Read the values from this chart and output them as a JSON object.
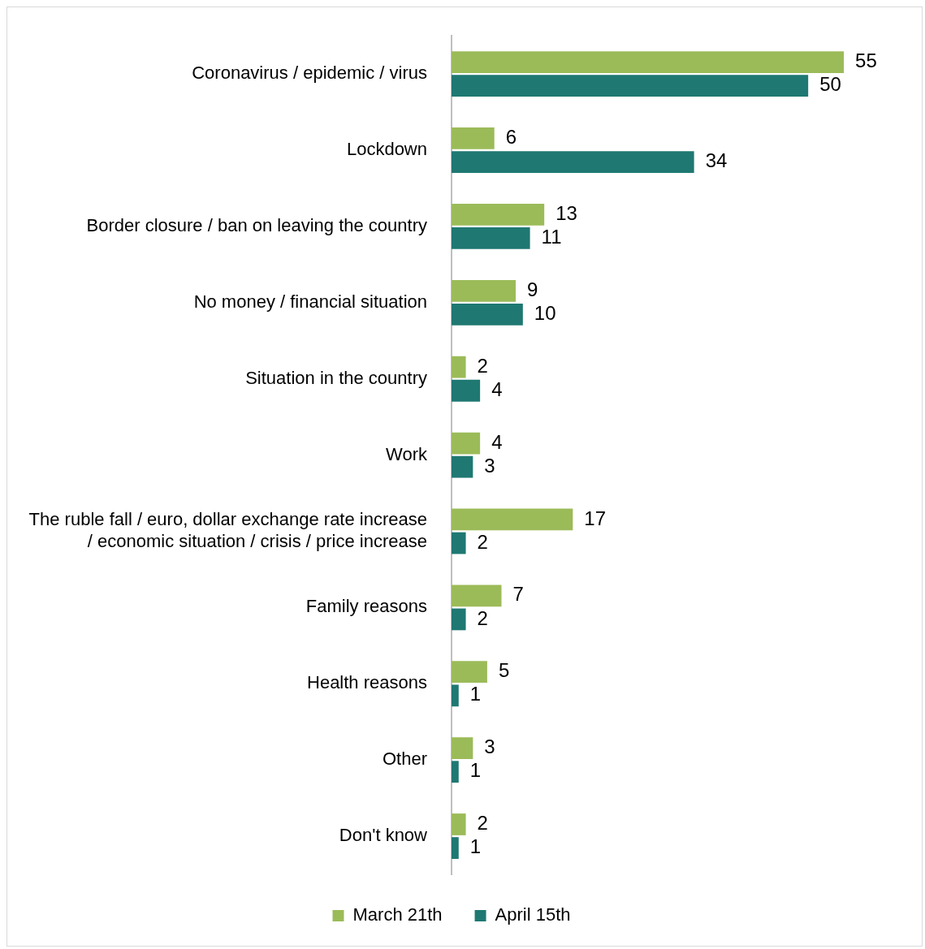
{
  "chart_data": {
    "type": "bar",
    "orientation": "horizontal",
    "categories": [
      "Coronavirus / epidemic / virus",
      "Lockdown",
      "Border closure / ban on leaving the country",
      "No money / financial situation",
      "Situation in the country",
      "Work",
      "The ruble fall / euro, dollar exchange rate increase / economic situation / crisis / price increase",
      "Family reasons",
      "Health reasons",
      "Other",
      "Don't know"
    ],
    "series": [
      {
        "name": "March 21th",
        "color": "#9bbb59",
        "values": [
          55,
          6,
          13,
          9,
          2,
          4,
          17,
          7,
          5,
          3,
          2
        ]
      },
      {
        "name": "April 15th",
        "color": "#1f7872",
        "values": [
          50,
          34,
          11,
          10,
          4,
          3,
          2,
          2,
          1,
          1,
          1
        ]
      }
    ],
    "data_labels": true,
    "legend": "bottom"
  }
}
